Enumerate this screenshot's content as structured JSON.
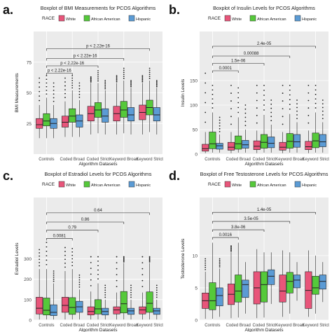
{
  "legend_title": "RACE",
  "race_colors": {
    "White": "#e8557a",
    "African American": "#55c93a",
    "Hispanic": "#5b9bd5"
  },
  "chart_data": [
    {
      "type": "boxplot",
      "panel_label": "a.",
      "title": "Boxplot of BMI Measurements for PCOS Algorithms",
      "xlabel": "Algorithm Datasets",
      "ylabel": "BMI Measurements",
      "ylim": [
        0,
        100
      ],
      "yticks": [
        25,
        50,
        75
      ],
      "categories": [
        "Controls",
        "Coded Broad",
        "Coded Strict",
        "Keyword Broad",
        "Keyword Strict"
      ],
      "legend": [
        "White",
        "African American",
        "Hispanic"
      ],
      "grid": true,
      "series": [
        {
          "name": "White",
          "boxes": [
            {
              "q1": 21,
              "median": 24,
              "q3": 29,
              "lower": 13,
              "upper": 40,
              "outlier_top": 62
            },
            {
              "q1": 22,
              "median": 26,
              "q3": 31,
              "lower": 14,
              "upper": 43,
              "outlier_top": 62
            },
            {
              "q1": 27,
              "median": 33,
              "q3": 39,
              "lower": 16,
              "upper": 58,
              "outlier_top": 63
            },
            {
              "q1": 27,
              "median": 33,
              "q3": 39,
              "lower": 16,
              "upper": 58,
              "outlier_top": 64
            },
            {
              "q1": 28,
              "median": 34,
              "q3": 40,
              "lower": 16,
              "upper": 58,
              "outlier_top": 64
            }
          ]
        },
        {
          "name": "African American",
          "boxes": [
            {
              "q1": 23,
              "median": 27,
              "q3": 33,
              "lower": 13,
              "upper": 46,
              "outlier_top": 64
            },
            {
              "q1": 26,
              "median": 31,
              "q3": 37,
              "lower": 14,
              "upper": 52,
              "outlier_top": 64
            },
            {
              "q1": 30,
              "median": 36,
              "q3": 42,
              "lower": 17,
              "upper": 58,
              "outlier_top": 68
            },
            {
              "q1": 30,
              "median": 36,
              "q3": 43,
              "lower": 17,
              "upper": 60,
              "outlier_top": 70
            },
            {
              "q1": 32,
              "median": 38,
              "q3": 44,
              "lower": 18,
              "upper": 60,
              "outlier_top": 70
            }
          ]
        },
        {
          "name": "Hispanic",
          "boxes": [
            {
              "q1": 21,
              "median": 25,
              "q3": 29,
              "lower": 13,
              "upper": 40,
              "outlier_top": 58
            },
            {
              "q1": 22,
              "median": 27,
              "q3": 32,
              "lower": 14,
              "upper": 44,
              "outlier_top": 58
            },
            {
              "q1": 26,
              "median": 31,
              "q3": 37,
              "lower": 16,
              "upper": 52,
              "outlier_top": 60
            },
            {
              "q1": 27,
              "median": 32,
              "q3": 38,
              "lower": 16,
              "upper": 54,
              "outlier_top": 60
            },
            {
              "q1": 27,
              "median": 32,
              "q3": 38,
              "lower": 16,
              "upper": 54,
              "outlier_top": 60
            }
          ]
        }
      ],
      "comparisons": [
        {
          "label": "p < 2.22e-16",
          "from": 0,
          "to": 1,
          "y": 66
        },
        {
          "label": "p < 2.22e-16",
          "from": 0,
          "to": 2,
          "y": 72
        },
        {
          "label": "p < 2.22e-16",
          "from": 0,
          "to": 3,
          "y": 78
        },
        {
          "label": "p < 2.22e-16",
          "from": 0,
          "to": 4,
          "y": 86
        }
      ]
    },
    {
      "type": "boxplot",
      "panel_label": "b.",
      "title": "Boxplot of Insulin Levels for PCOS Algorithms",
      "xlabel": "Algorithm Datasets",
      "ylabel": "Insulin Levels",
      "ylim": [
        0,
        250
      ],
      "yticks": [
        0,
        50,
        100,
        150
      ],
      "categories": [
        "Controls",
        "Coded Broad",
        "Coded Strict",
        "Keyword Broad",
        "Keyword Strict"
      ],
      "legend": [
        "White",
        "African American",
        "Hispanic"
      ],
      "grid": true,
      "series": [
        {
          "name": "White",
          "boxes": [
            {
              "q1": 6,
              "median": 11,
              "q3": 20,
              "lower": 2,
              "upper": 45,
              "outlier_top": 165
            },
            {
              "q1": 8,
              "median": 14,
              "q3": 24,
              "lower": 2,
              "upper": 45,
              "outlier_top": 140
            },
            {
              "q1": 9,
              "median": 16,
              "q3": 27,
              "lower": 2,
              "upper": 48,
              "outlier_top": 140
            },
            {
              "q1": 8,
              "median": 14,
              "q3": 24,
              "lower": 2,
              "upper": 45,
              "outlier_top": 140
            },
            {
              "q1": 9,
              "median": 15,
              "q3": 26,
              "lower": 2,
              "upper": 48,
              "outlier_top": 140
            }
          ]
        },
        {
          "name": "African American",
          "boxes": [
            {
              "q1": 11,
              "median": 21,
              "q3": 45,
              "lower": 3,
              "upper": 85,
              "outlier_top": 140
            },
            {
              "q1": 10,
              "median": 21,
              "q3": 37,
              "lower": 3,
              "upper": 75,
              "outlier_top": 135
            },
            {
              "q1": 12,
              "median": 24,
              "q3": 40,
              "lower": 3,
              "upper": 80,
              "outlier_top": 140
            },
            {
              "q1": 12,
              "median": 26,
              "q3": 42,
              "lower": 3,
              "upper": 82,
              "outlier_top": 140
            },
            {
              "q1": 13,
              "median": 27,
              "q3": 43,
              "lower": 3,
              "upper": 85,
              "outlier_top": 140
            }
          ]
        },
        {
          "name": "Hispanic",
          "boxes": [
            {
              "q1": 10,
              "median": 17,
              "q3": 22,
              "lower": 3,
              "upper": 40,
              "outlier_top": 75
            },
            {
              "q1": 12,
              "median": 19,
              "q3": 28,
              "lower": 3,
              "upper": 50,
              "outlier_top": 100
            },
            {
              "q1": 13,
              "median": 22,
              "q3": 35,
              "lower": 3,
              "upper": 60,
              "outlier_top": 110
            },
            {
              "q1": 14,
              "median": 25,
              "q3": 40,
              "lower": 3,
              "upper": 65,
              "outlier_top": 110
            },
            {
              "q1": 15,
              "median": 25,
              "q3": 40,
              "lower": 3,
              "upper": 65,
              "outlier_top": 110
            }
          ]
        }
      ],
      "comparisons": [
        {
          "label": "0.0001",
          "from": 0,
          "to": 1,
          "y": 170
        },
        {
          "label": "1.5e-06",
          "from": 0,
          "to": 2,
          "y": 185
        },
        {
          "label": "0.00088",
          "from": 0,
          "to": 3,
          "y": 200
        },
        {
          "label": "2.4e-05",
          "from": 0,
          "to": 4,
          "y": 220
        }
      ]
    },
    {
      "type": "boxplot",
      "panel_label": "c.",
      "title": "Boxplot of Estradiol Levels for PCOS Algorithms",
      "xlabel": "Algorithm Datasets",
      "ylabel": "Estradiol Levels",
      "ylim": [
        0,
        600
      ],
      "yticks": [
        0,
        100,
        200,
        300
      ],
      "categories": [
        "Controls",
        "Coded Broad",
        "Coded Strict",
        "Keyword Broad",
        "Keyword Strict"
      ],
      "legend": [
        "White",
        "African American",
        "Hispanic"
      ],
      "grid": true,
      "series": [
        {
          "name": "White",
          "boxes": [
            {
              "q1": 30,
              "median": 58,
              "q3": 112,
              "lower": 3,
              "upper": 250,
              "outlier_top": 345
            },
            {
              "q1": 38,
              "median": 72,
              "q3": 112,
              "lower": 3,
              "upper": 240,
              "outlier_top": 355
            },
            {
              "q1": 25,
              "median": 42,
              "q3": 65,
              "lower": 3,
              "upper": 140,
              "outlier_top": 310
            },
            {
              "q1": 30,
              "median": 50,
              "q3": 65,
              "lower": 3,
              "upper": 135,
              "outlier_top": 310
            },
            {
              "q1": 30,
              "median": 50,
              "q3": 65,
              "lower": 3,
              "upper": 135,
              "outlier_top": 310
            }
          ]
        },
        {
          "name": "African American",
          "boxes": [
            {
              "q1": 25,
              "median": 48,
              "q3": 108,
              "lower": 3,
              "upper": 250,
              "outlier_top": 380
            },
            {
              "q1": 28,
              "median": 62,
              "q3": 110,
              "lower": 3,
              "upper": 250,
              "outlier_top": 350
            },
            {
              "q1": 30,
              "median": 55,
              "q3": 100,
              "lower": 3,
              "upper": 180,
              "outlier_top": 310
            },
            {
              "q1": 35,
              "median": 80,
              "q3": 140,
              "lower": 3,
              "upper": 280,
              "outlier_top": 310
            },
            {
              "q1": 38,
              "median": 82,
              "q3": 138,
              "lower": 3,
              "upper": 280,
              "outlier_top": 310
            }
          ]
        },
        {
          "name": "Hispanic",
          "boxes": [
            {
              "q1": 22,
              "median": 38,
              "q3": 75,
              "lower": 3,
              "upper": 180,
              "outlier_top": 240
            },
            {
              "q1": 38,
              "median": 65,
              "q3": 92,
              "lower": 3,
              "upper": 150,
              "outlier_top": 220
            },
            {
              "q1": 25,
              "median": 42,
              "q3": 58,
              "lower": 3,
              "upper": 100,
              "outlier_top": 170
            },
            {
              "q1": 28,
              "median": 45,
              "q3": 58,
              "lower": 3,
              "upper": 100,
              "outlier_top": 170
            },
            {
              "q1": 28,
              "median": 45,
              "q3": 58,
              "lower": 3,
              "upper": 100,
              "outlier_top": 170
            }
          ]
        }
      ],
      "comparisons": [
        {
          "label": "0.0081",
          "from": 0,
          "to": 1,
          "y": 400
        },
        {
          "label": "0.79",
          "from": 0,
          "to": 2,
          "y": 440
        },
        {
          "label": "0.86",
          "from": 0,
          "to": 3,
          "y": 480
        },
        {
          "label": "0.64",
          "from": 0,
          "to": 4,
          "y": 525
        }
      ]
    },
    {
      "type": "boxplot",
      "panel_label": "d.",
      "title": "Boxplot of Free Testosterone Levels for PCOS Algorithms",
      "xlabel": "Algorithm Datasets",
      "ylabel": "Testosterone Levels",
      "ylim": [
        0,
        19
      ],
      "yticks": [
        0,
        5,
        10
      ],
      "categories": [
        "Controls",
        "Coded Broad",
        "Coded Strict",
        "Keyword Broad",
        "Keyword Strict"
      ],
      "legend": [
        "White",
        "African American",
        "Hispanic"
      ],
      "grid": true,
      "series": [
        {
          "name": "White",
          "boxes": [
            {
              "q1": 1.8,
              "median": 3.0,
              "q3": 4.2,
              "lower": 0.2,
              "upper": 7.5,
              "outlier_top": 9.5
            },
            {
              "q1": 2.4,
              "median": 4.0,
              "q3": 5.6,
              "lower": 0.3,
              "upper": 10.5,
              "outlier_top": 11.5
            },
            {
              "q1": 2.5,
              "median": 5.0,
              "q3": 7.5,
              "lower": 0.3,
              "upper": 11.0,
              "outlier_top": 11.0
            },
            {
              "q1": 2.8,
              "median": 4.5,
              "q3": 7.0,
              "lower": 0.5,
              "upper": 10.8,
              "outlier_top": 10.8
            },
            {
              "q1": 1.8,
              "median": 4.6,
              "q3": 7.5,
              "lower": 0.5,
              "upper": 10.8,
              "outlier_top": 10.8
            }
          ]
        },
        {
          "name": "African American",
          "boxes": [
            {
              "q1": 1.6,
              "median": 3.0,
              "q3": 5.8,
              "lower": 0.2,
              "upper": 12.0,
              "outlier_top": 12.0
            },
            {
              "q1": 2.8,
              "median": 4.5,
              "q3": 7.0,
              "lower": 0.4,
              "upper": 12.0,
              "outlier_top": 12.0
            },
            {
              "q1": 2.8,
              "median": 5.5,
              "q3": 7.5,
              "lower": 0.4,
              "upper": 10.5,
              "outlier_top": 10.5
            },
            {
              "q1": 4.2,
              "median": 6.0,
              "q3": 7.4,
              "lower": 1.0,
              "upper": 10.5,
              "outlier_top": 10.5
            },
            {
              "q1": 4.0,
              "median": 5.0,
              "q3": 6.8,
              "lower": 1.0,
              "upper": 10.0,
              "outlier_top": 10.0
            }
          ]
        },
        {
          "name": "Hispanic",
          "boxes": [
            {
              "q1": 2.2,
              "median": 3.8,
              "q3": 5.0,
              "lower": 0.5,
              "upper": 8.0,
              "outlier_top": 9.5
            },
            {
              "q1": 3.5,
              "median": 5.5,
              "q3": 6.2,
              "lower": 1.0,
              "upper": 9.0,
              "outlier_top": 9.0
            },
            {
              "q1": 5.5,
              "median": 6.8,
              "q3": 7.8,
              "lower": 2.5,
              "upper": 10.5,
              "outlier_top": 10.5
            },
            {
              "q1": 5.0,
              "median": 6.2,
              "q3": 7.0,
              "lower": 3.0,
              "upper": 9.0,
              "outlier_top": 9.0
            },
            {
              "q1": 4.8,
              "median": 6.0,
              "q3": 7.0,
              "lower": 2.8,
              "upper": 9.0,
              "outlier_top": 9.0
            }
          ]
        }
      ],
      "comparisons": [
        {
          "label": "0.0016",
          "from": 0,
          "to": 1,
          "y": 12.8
        },
        {
          "label": "3.8e-06",
          "from": 0,
          "to": 2,
          "y": 14.0
        },
        {
          "label": "3.5e-05",
          "from": 0,
          "to": 3,
          "y": 15.3
        },
        {
          "label": "1.4e-05",
          "from": 0,
          "to": 4,
          "y": 16.7
        }
      ]
    }
  ]
}
